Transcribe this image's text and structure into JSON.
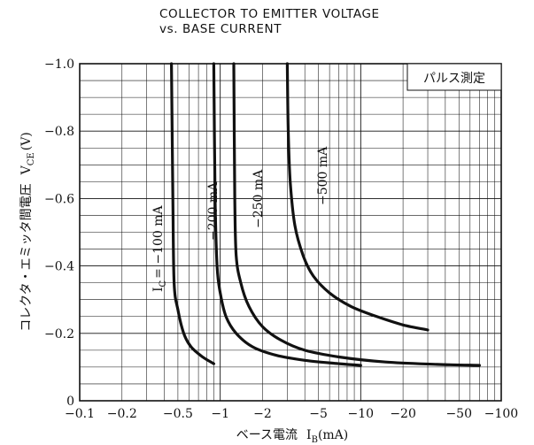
{
  "chart_data": {
    "type": "line",
    "title_lines": [
      "COLLECTOR TO EMITTER VOLTAGE",
      "vs. BASE CURRENT"
    ],
    "xlabel": "ベース電流",
    "xlabel_symbol": "I",
    "xlabel_sub": "B",
    "xlabel_unit": "(mA)",
    "ylabel": "コレクタ・エミッタ間電圧",
    "ylabel_symbol": "V",
    "ylabel_sub": "CE",
    "ylabel_unit": "(V)",
    "x_scale": "log",
    "xlim": [
      -0.1,
      -100
    ],
    "ylim": [
      0,
      -1.0
    ],
    "x_ticks": [
      {
        "value": -0.1,
        "label": "−0.1"
      },
      {
        "value": -0.2,
        "label": "−0.2"
      },
      {
        "value": -0.5,
        "label": "−0.5"
      },
      {
        "value": -1,
        "label": "−1"
      },
      {
        "value": -2,
        "label": "−2"
      },
      {
        "value": -5,
        "label": "−5"
      },
      {
        "value": -10,
        "label": "−10"
      },
      {
        "value": -20,
        "label": "−20"
      },
      {
        "value": -50,
        "label": "−50"
      },
      {
        "value": -100,
        "label": "−100"
      }
    ],
    "y_ticks": [
      {
        "value": 0,
        "label": "0"
      },
      {
        "value": -0.2,
        "label": "−0.2"
      },
      {
        "value": -0.4,
        "label": "−0.4"
      },
      {
        "value": -0.6,
        "label": "−0.6"
      },
      {
        "value": -0.8,
        "label": "−0.8"
      },
      {
        "value": -1.0,
        "label": "−1.0"
      }
    ],
    "grid": true,
    "annotation": "パルス測定",
    "series": [
      {
        "name": "I_C = −100 mA",
        "label_parts": {
          "sym": "I",
          "sub": "C",
          "rest": "= −100 mA"
        },
        "x": [
          -0.45,
          -0.46,
          -0.47,
          -0.5,
          -0.55,
          -0.62,
          -0.75,
          -0.9
        ],
        "y": [
          -1.0,
          -0.6,
          -0.35,
          -0.27,
          -0.2,
          -0.16,
          -0.13,
          -0.11
        ]
      },
      {
        "name": "−200 mA",
        "label_parts": {
          "sym": "",
          "sub": "",
          "rest": "−200 mA"
        },
        "x": [
          -0.9,
          -0.92,
          -0.95,
          -1.0,
          -1.1,
          -1.3,
          -1.7,
          -2.5,
          -4,
          -7,
          -10
        ],
        "y": [
          -1.0,
          -0.6,
          -0.4,
          -0.32,
          -0.25,
          -0.2,
          -0.16,
          -0.135,
          -0.12,
          -0.11,
          -0.105
        ]
      },
      {
        "name": "−250 mA",
        "label_parts": {
          "sym": "",
          "sub": "",
          "rest": "−250 mA"
        },
        "x": [
          -1.25,
          -1.27,
          -1.3,
          -1.4,
          -1.6,
          -2.0,
          -2.7,
          -4,
          -7,
          -15,
          -35,
          -70
        ],
        "y": [
          -1.0,
          -0.6,
          -0.43,
          -0.35,
          -0.28,
          -0.22,
          -0.18,
          -0.15,
          -0.13,
          -0.115,
          -0.108,
          -0.105
        ]
      },
      {
        "name": "−500 mA",
        "label_parts": {
          "sym": "",
          "sub": "",
          "rest": "−500 mA"
        },
        "x": [
          -3.0,
          -3.05,
          -3.15,
          -3.4,
          -3.9,
          -4.6,
          -6,
          -8.5,
          -13,
          -20,
          -30
        ],
        "y": [
          -1.0,
          -0.8,
          -0.65,
          -0.52,
          -0.43,
          -0.37,
          -0.32,
          -0.28,
          -0.25,
          -0.225,
          -0.21
        ]
      }
    ]
  }
}
